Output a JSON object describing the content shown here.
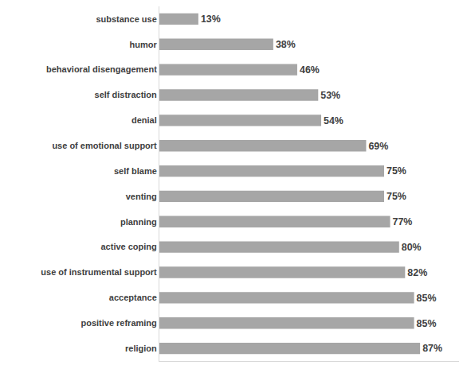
{
  "chart_data": {
    "type": "bar",
    "orientation": "horizontal",
    "categories": [
      "substance use",
      "humor",
      "behavioral disengagement",
      "self distraction",
      "denial",
      "use of emotional support",
      "self blame",
      "venting",
      "planning",
      "active coping",
      "use of instrumental support",
      "acceptance",
      "positive reframing",
      "religion"
    ],
    "values": [
      13,
      38,
      46,
      53,
      54,
      69,
      75,
      75,
      77,
      80,
      82,
      85,
      85,
      87
    ],
    "value_labels": [
      "13%",
      "38%",
      "46%",
      "53%",
      "54%",
      "69%",
      "75%",
      "75%",
      "77%",
      "80%",
      "82%",
      "85%",
      "85%",
      "87%"
    ],
    "color": "#a6a6a6",
    "xlim": [
      0,
      100
    ],
    "data_labels": true,
    "tick_labels": "y",
    "grid": false
  }
}
